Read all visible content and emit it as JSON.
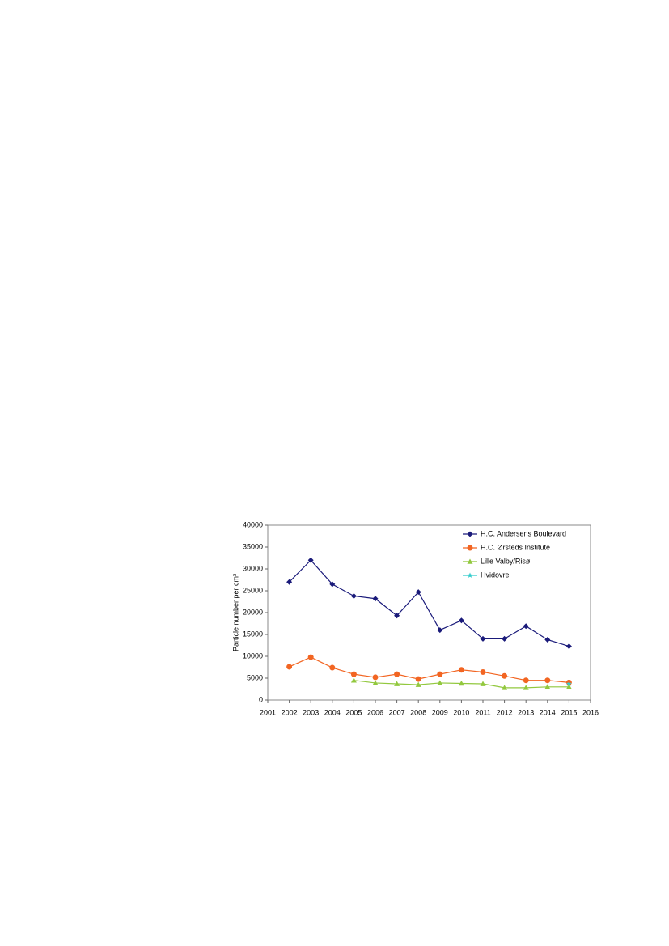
{
  "chart_data": {
    "type": "line",
    "y_label": "Particle number per cm³",
    "x": [
      2002,
      2003,
      2004,
      2005,
      2006,
      2007,
      2008,
      2009,
      2010,
      2011,
      2012,
      2013,
      2014,
      2015
    ],
    "series": [
      {
        "name": "H.C. Andersens Boulevard",
        "color": "#1a1a7a",
        "marker": "diamond",
        "values": [
          27000,
          32000,
          26500,
          23800,
          23200,
          19300,
          24700,
          16000,
          18200,
          14000,
          14000,
          16900,
          13800,
          12300
        ]
      },
      {
        "name": "H.C. Ørsteds Institute",
        "color": "#f26522",
        "marker": "circle",
        "values": [
          7600,
          9800,
          7400,
          5900,
          5200,
          5900,
          4800,
          5900,
          6900,
          6400,
          5500,
          4500,
          4500,
          4000
        ]
      },
      {
        "name": "Lille Valby/Risø",
        "color": "#92c83e",
        "marker": "triangle",
        "values": [
          null,
          null,
          null,
          4500,
          3900,
          3700,
          3500,
          3900,
          3800,
          3700,
          2800,
          2800,
          3000,
          3000
        ]
      },
      {
        "name": "Hvidovre",
        "color": "#33cccc",
        "marker": "star",
        "values": [
          null,
          null,
          null,
          null,
          null,
          null,
          null,
          null,
          null,
          null,
          null,
          null,
          null,
          3700
        ]
      }
    ],
    "xlim": [
      2001,
      2016
    ],
    "xticks": [
      2001,
      2002,
      2003,
      2004,
      2005,
      2006,
      2007,
      2008,
      2009,
      2010,
      2011,
      2012,
      2013,
      2014,
      2015,
      2016
    ],
    "ylim": [
      0,
      40000
    ],
    "yticks": [
      0,
      5000,
      10000,
      15000,
      20000,
      25000,
      30000,
      35000,
      40000
    ],
    "grid": false,
    "legend": "top-right"
  }
}
